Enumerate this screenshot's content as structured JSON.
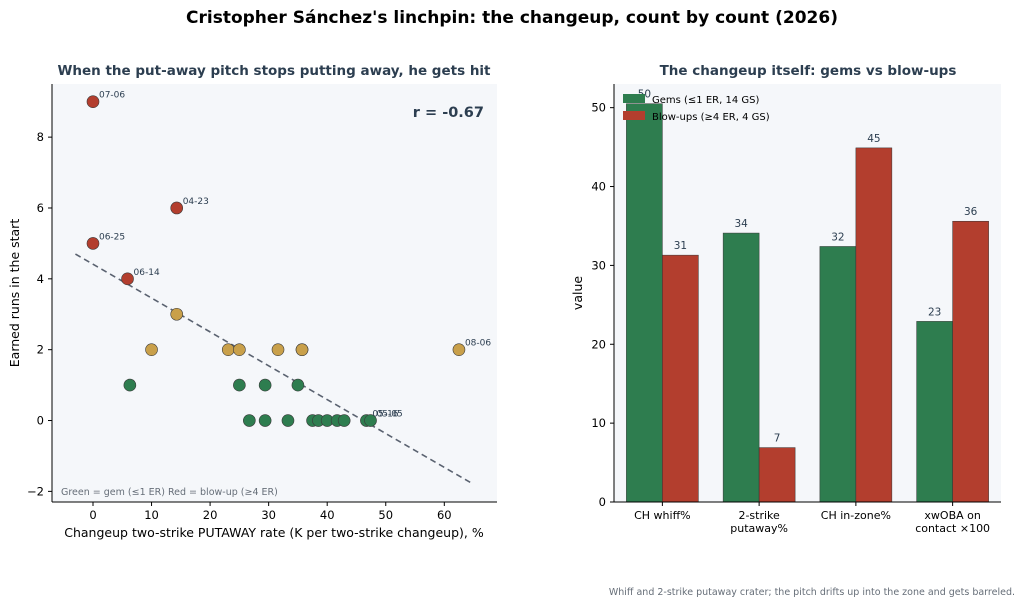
{
  "figure": {
    "suptitle": "Cristopher Sánchez's linchpin: the changeup, count by count (2026)",
    "footnote": "Whiff and 2-strike putaway crater; the pitch drifts up into the zone and gets barreled."
  },
  "colors": {
    "gem": "#2e7d4f",
    "blowup": "#b33e2e",
    "middle": "#c9a04a",
    "panel_bg": "#f5f7fa",
    "trend": "#5a6270"
  },
  "chart_data": [
    {
      "type": "scatter",
      "title": "When the put-away pitch stops putting away, he gets hit",
      "xlabel": "Changeup two-strike PUTAWAY rate (K per two-strike changeup), %",
      "ylabel": "Earned runs in the start",
      "xlim": [
        -7,
        69
      ],
      "ylim": [
        -2.3,
        9.5
      ],
      "xticks": [
        0,
        10,
        20,
        30,
        40,
        50,
        60
      ],
      "yticks": [
        -2,
        0,
        2,
        4,
        6,
        8
      ],
      "xtick_labels": [
        "0",
        "10",
        "20",
        "30",
        "40",
        "50",
        "60"
      ],
      "ytick_labels": [
        "−2",
        "0",
        "2",
        "4",
        "6",
        "8"
      ],
      "annotation": "r = -0.67",
      "legend_note": "Green = gem (≤1 ER)   Red = blow-up (≥4 ER)",
      "trend_line": {
        "x": [
          -3,
          65
        ],
        "y": [
          4.7,
          -1.8
        ]
      },
      "points": [
        {
          "x": 0,
          "y": 9,
          "group": "blowup",
          "label": "07-06"
        },
        {
          "x": 14.3,
          "y": 6,
          "group": "blowup",
          "label": "04-23"
        },
        {
          "x": 0,
          "y": 5,
          "group": "blowup",
          "label": "06-25"
        },
        {
          "x": 5.9,
          "y": 4,
          "group": "blowup",
          "label": "06-14"
        },
        {
          "x": 14.3,
          "y": 3,
          "group": "middle",
          "label": ""
        },
        {
          "x": 10,
          "y": 2,
          "group": "middle",
          "label": ""
        },
        {
          "x": 23.1,
          "y": 2,
          "group": "middle",
          "label": ""
        },
        {
          "x": 25,
          "y": 2,
          "group": "middle",
          "label": ""
        },
        {
          "x": 31.6,
          "y": 2,
          "group": "middle",
          "label": ""
        },
        {
          "x": 35.7,
          "y": 2,
          "group": "middle",
          "label": ""
        },
        {
          "x": 35.7,
          "y": 2,
          "group": "middle",
          "label": ""
        },
        {
          "x": 62.5,
          "y": 2,
          "group": "middle",
          "label": "08-06"
        },
        {
          "x": 6.3,
          "y": 1,
          "group": "gem",
          "label": ""
        },
        {
          "x": 25,
          "y": 1,
          "group": "gem",
          "label": ""
        },
        {
          "x": 29.4,
          "y": 1,
          "group": "gem",
          "label": ""
        },
        {
          "x": 35,
          "y": 1,
          "group": "gem",
          "label": ""
        },
        {
          "x": 26.7,
          "y": 0,
          "group": "gem",
          "label": ""
        },
        {
          "x": 29.4,
          "y": 0,
          "group": "gem",
          "label": ""
        },
        {
          "x": 33.3,
          "y": 0,
          "group": "gem",
          "label": ""
        },
        {
          "x": 37.5,
          "y": 0,
          "group": "gem",
          "label": ""
        },
        {
          "x": 38.5,
          "y": 0,
          "group": "gem",
          "label": ""
        },
        {
          "x": 40,
          "y": 0,
          "group": "gem",
          "label": ""
        },
        {
          "x": 41.7,
          "y": 0,
          "group": "gem",
          "label": ""
        },
        {
          "x": 42.9,
          "y": 0,
          "group": "gem",
          "label": ""
        },
        {
          "x": 46.7,
          "y": 0,
          "group": "gem",
          "label": "05-16"
        },
        {
          "x": 47.4,
          "y": 0,
          "group": "gem",
          "label": "05-05"
        }
      ]
    },
    {
      "type": "bar",
      "title": "The changeup itself: gems vs blow-ups",
      "xlabel": "",
      "ylabel": "value",
      "ylim": [
        0,
        53
      ],
      "yticks": [
        0,
        10,
        20,
        30,
        40,
        50
      ],
      "categories": [
        "CH whiff%",
        "2-strike\nputaway%",
        "CH in-zone%",
        "xwOBA on\ncontact ×100"
      ],
      "series": [
        {
          "name": "Gems (≤1 ER, 14 GS)",
          "group": "gem",
          "values": [
            50.5,
            34.1,
            32.4,
            22.9
          ],
          "labels": [
            "50",
            "34",
            "32",
            "23"
          ]
        },
        {
          "name": "Blow-ups (≥4 ER, 4 GS)",
          "group": "blowup",
          "values": [
            31.3,
            6.9,
            44.9,
            35.6
          ],
          "labels": [
            "31",
            "7",
            "45",
            "36"
          ]
        }
      ],
      "legend_position": "top-left"
    }
  ]
}
